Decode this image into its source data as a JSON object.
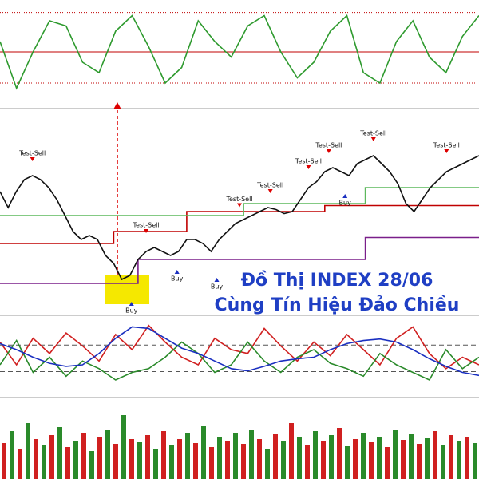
{
  "overlay_text": [
    "Đồ Thị INDEX 28/06",
    "Cùng Tín Hiệu Đảo Chiều"
  ],
  "chart_data": [
    {
      "type": "line",
      "xlim": [
        0,
        29
      ],
      "ylim": [
        0,
        100
      ],
      "reference_lines": [
        {
          "value": 50,
          "color": "#c00000",
          "style": "solid"
        },
        {
          "value": 88,
          "color": "#c00000",
          "style": "dotted"
        },
        {
          "value": 20,
          "color": "#c00000",
          "style": "dotted"
        }
      ],
      "series": [
        {
          "color": "#2e9a2e",
          "values": [
            60,
            15,
            50,
            80,
            75,
            40,
            30,
            70,
            85,
            55,
            20,
            35,
            80,
            60,
            45,
            75,
            85,
            50,
            25,
            40,
            70,
            85,
            30,
            20,
            60,
            80,
            45,
            30,
            65,
            85
          ]
        }
      ]
    },
    {
      "type": "line",
      "xlim": [
        0,
        590
      ],
      "ylim": [
        0,
        100
      ],
      "reference_lines": [],
      "series": [
        {
          "color": "#c00000",
          "x": [
            0,
            140,
            140,
            230,
            230,
            400,
            400,
            600
          ],
          "values": [
            34,
            34,
            40,
            40,
            50,
            50,
            53,
            53
          ]
        },
        {
          "color": "#7a1f8a",
          "x": [
            0,
            170,
            170,
            450,
            450,
            600
          ],
          "values": [
            14,
            14,
            26,
            26,
            37,
            37
          ]
        },
        {
          "color": "#5cb85c",
          "x": [
            0,
            300,
            300,
            450,
            450,
            600
          ],
          "values": [
            48,
            48,
            54,
            54,
            62,
            62
          ]
        },
        {
          "color": "#111111",
          "x": [
            0,
            10,
            20,
            30,
            40,
            50,
            60,
            70,
            80,
            90,
            100,
            110,
            120,
            130,
            140,
            150,
            160,
            170,
            180,
            190,
            200,
            210,
            220,
            230,
            240,
            250,
            260,
            270,
            280,
            290,
            300,
            310,
            320,
            330,
            340,
            350,
            360,
            370,
            380,
            390,
            400,
            410,
            420,
            430,
            440,
            450,
            460,
            470,
            480,
            490,
            500,
            510,
            520,
            530,
            540,
            550,
            560,
            570,
            580,
            590
          ],
          "values": [
            60,
            52,
            60,
            66,
            68,
            66,
            62,
            56,
            48,
            40,
            36,
            38,
            36,
            28,
            24,
            16,
            18,
            26,
            30,
            32,
            30,
            28,
            30,
            36,
            36,
            34,
            30,
            36,
            40,
            44,
            46,
            48,
            50,
            52,
            51,
            49,
            50,
            56,
            62,
            65,
            70,
            72,
            70,
            68,
            74,
            76,
            78,
            74,
            70,
            64,
            54,
            50,
            56,
            62,
            66,
            70,
            72,
            74,
            76,
            78
          ]
        }
      ],
      "annotations": [
        {
          "text": "Test-Sell",
          "x": 40,
          "y": 74,
          "kind": "sell"
        },
        {
          "text": "Test-Sell",
          "x": 180,
          "y": 38,
          "kind": "sell"
        },
        {
          "text": "Test-Sell",
          "x": 295,
          "y": 51,
          "kind": "sell"
        },
        {
          "text": "Test-Sell",
          "x": 333,
          "y": 58,
          "kind": "sell"
        },
        {
          "text": "Test-Sell",
          "x": 380,
          "y": 70,
          "kind": "sell"
        },
        {
          "text": "Test-Sell",
          "x": 405,
          "y": 78,
          "kind": "sell"
        },
        {
          "text": "Test-Sell",
          "x": 460,
          "y": 84,
          "kind": "sell"
        },
        {
          "text": "Test-Sell",
          "x": 550,
          "y": 78,
          "kind": "sell"
        },
        {
          "text": "Buy",
          "x": 162,
          "y": 6,
          "kind": "buy"
        },
        {
          "text": "Buy",
          "x": 218,
          "y": 22,
          "kind": "buy"
        },
        {
          "text": "Buy",
          "x": 267,
          "y": 18,
          "kind": "buy"
        },
        {
          "text": "Buy",
          "x": 425,
          "y": 60,
          "kind": "buy"
        }
      ]
    },
    {
      "type": "line",
      "xlim": [
        0,
        29
      ],
      "ylim": [
        0,
        100
      ],
      "reference_lines": [
        {
          "value": 66,
          "color": "#555555",
          "style": "dashed"
        },
        {
          "value": 31,
          "color": "#555555",
          "style": "dashed"
        }
      ],
      "series": [
        {
          "color": "#d02020",
          "values": [
            70,
            40,
            75,
            55,
            82,
            65,
            45,
            80,
            60,
            92,
            70,
            50,
            40,
            75,
            60,
            55,
            88,
            65,
            45,
            70,
            52,
            80,
            60,
            40,
            75,
            90,
            55,
            35,
            50,
            40
          ]
        },
        {
          "color": "#2a8a2a",
          "values": [
            40,
            72,
            30,
            50,
            25,
            45,
            35,
            20,
            30,
            35,
            50,
            70,
            55,
            30,
            40,
            70,
            45,
            30,
            50,
            60,
            42,
            35,
            25,
            55,
            40,
            30,
            20,
            60,
            35,
            50
          ]
        },
        {
          "color": "#1a2fc0",
          "values": [
            68,
            60,
            50,
            42,
            38,
            40,
            55,
            75,
            90,
            88,
            75,
            62,
            55,
            45,
            35,
            32,
            38,
            45,
            48,
            50,
            60,
            68,
            72,
            74,
            70,
            60,
            48,
            38,
            30,
            26
          ]
        }
      ]
    },
    {
      "type": "bar",
      "ylim": [
        0,
        100
      ],
      "values": [
        45,
        60,
        38,
        70,
        50,
        42,
        55,
        65,
        40,
        48,
        58,
        35,
        52,
        62,
        44,
        80,
        50,
        46,
        55,
        38,
        60,
        42,
        50,
        57,
        45,
        66,
        40,
        52,
        48,
        58,
        44,
        62,
        50,
        38,
        56,
        47,
        70,
        52,
        43,
        60,
        48,
        55,
        64,
        41,
        50,
        58,
        46,
        53,
        40,
        62,
        49,
        56,
        44,
        51,
        60,
        42,
        55,
        48,
        52,
        45
      ],
      "colors": [
        "#d02020",
        "#2a8a2a"
      ]
    }
  ]
}
